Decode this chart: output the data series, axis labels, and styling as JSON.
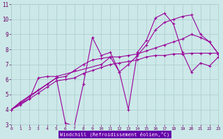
{
  "xlabel": "Windchill (Refroidissement éolien,°C)",
  "bg_color": "#cce8e8",
  "grid_color": "#aacccc",
  "line_color": "#990099",
  "axis_label_bg": "#6600aa",
  "axis_label_fg": "#ffffff",
  "tick_color": "#660066",
  "xlim": [
    0,
    23
  ],
  "ylim": [
    3,
    11
  ],
  "xticks": [
    0,
    1,
    2,
    3,
    4,
    5,
    6,
    7,
    8,
    9,
    10,
    11,
    12,
    13,
    14,
    15,
    16,
    17,
    18,
    19,
    20,
    21,
    22,
    23
  ],
  "yticks": [
    3,
    4,
    5,
    6,
    7,
    8,
    9,
    10,
    11
  ],
  "lines": [
    {
      "x": [
        0,
        1,
        2,
        3,
        4,
        5,
        10,
        11,
        12,
        13,
        14,
        15,
        16,
        17,
        18,
        19,
        20,
        21,
        22,
        23
      ],
      "y": [
        4.0,
        4.4,
        4.7,
        6.1,
        6.2,
        6.2,
        7.0,
        7.5,
        6.5,
        7.0,
        7.6,
        8.3,
        9.3,
        9.8,
        10.0,
        10.2,
        10.3,
        9.0,
        8.5,
        7.7
      ]
    },
    {
      "x": [
        0,
        1,
        2,
        3,
        4,
        5,
        6,
        7,
        8,
        9,
        10,
        11,
        12,
        13,
        14,
        15,
        16,
        17,
        18,
        19,
        20,
        21,
        22,
        23
      ],
      "y": [
        4.0,
        4.3,
        4.7,
        5.1,
        5.5,
        5.9,
        6.0,
        6.1,
        6.4,
        6.6,
        6.8,
        7.0,
        7.1,
        7.2,
        7.3,
        7.5,
        7.6,
        7.6,
        7.7,
        7.7,
        7.75,
        7.75,
        7.75,
        7.75
      ]
    },
    {
      "x": [
        0,
        5,
        6,
        7,
        8,
        9,
        10,
        11,
        12,
        13,
        14,
        15,
        16,
        17,
        18,
        19,
        20,
        21,
        22,
        23
      ],
      "y": [
        4.0,
        6.1,
        3.1,
        2.9,
        5.7,
        8.8,
        7.6,
        7.8,
        6.5,
        4.0,
        7.8,
        8.6,
        10.1,
        10.4,
        9.7,
        7.8,
        6.5,
        7.1,
        6.9,
        7.5
      ]
    },
    {
      "x": [
        0,
        1,
        2,
        3,
        4,
        5,
        6,
        7,
        8,
        9,
        10,
        11,
        12,
        13,
        14,
        15,
        16,
        17,
        18,
        19,
        20,
        21,
        22,
        23
      ],
      "y": [
        4.0,
        4.5,
        4.9,
        5.3,
        5.7,
        6.1,
        6.2,
        6.6,
        7.0,
        7.3,
        7.4,
        7.5,
        7.5,
        7.6,
        7.7,
        7.9,
        8.1,
        8.3,
        8.5,
        8.7,
        9.0,
        8.8,
        8.5,
        7.7
      ]
    }
  ]
}
